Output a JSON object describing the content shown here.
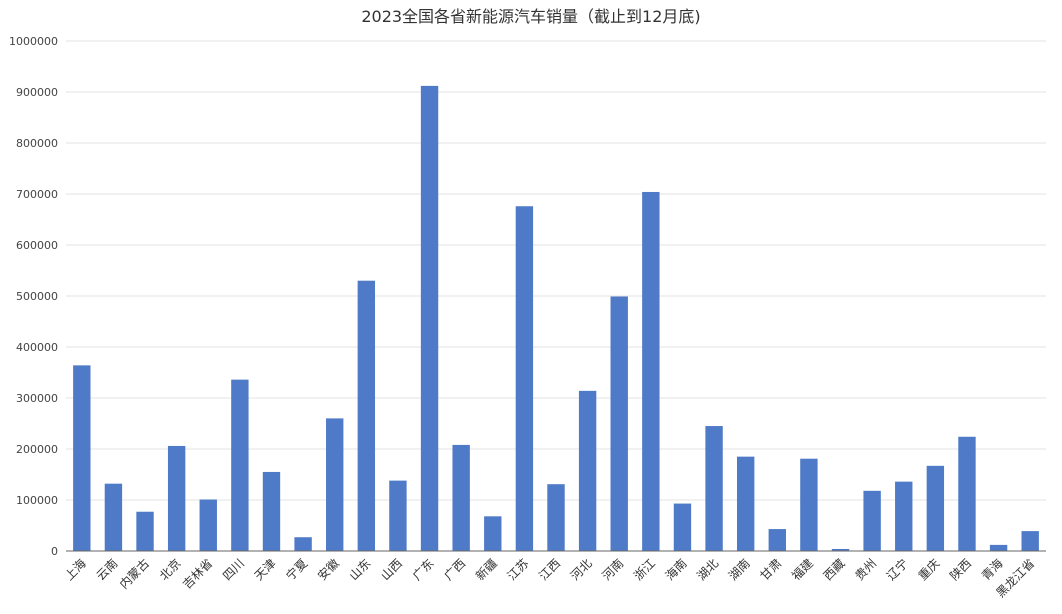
{
  "chart_data": {
    "type": "bar",
    "title": "2023全国各省新能源汽车销量（截止到12月底)",
    "xlabel": "",
    "ylabel": "",
    "ylim": [
      0,
      1000000
    ],
    "yticks": [
      "0",
      "100000",
      "200000",
      "300000",
      "400000",
      "500000",
      "600000",
      "700000",
      "800000",
      "900000",
      "1000000"
    ],
    "grid": true,
    "bar_color": "#4e7ac7",
    "categories": [
      "上海",
      "云南",
      "内蒙古",
      "北京",
      "吉林省",
      "四川",
      "天津",
      "宁夏",
      "安徽",
      "山东",
      "山西",
      "广东",
      "广西",
      "新疆",
      "江苏",
      "江西",
      "河北",
      "河南",
      "浙江",
      "海南",
      "湖北",
      "湖南",
      "甘肃",
      "福建",
      "西藏",
      "贵州",
      "辽宁",
      "重庆",
      "陕西",
      "青海",
      "黑龙江省"
    ],
    "values": [
      364000,
      132000,
      77000,
      206000,
      101000,
      336000,
      155000,
      27000,
      260000,
      530000,
      138000,
      912000,
      208000,
      68000,
      676000,
      131000,
      314000,
      499000,
      704000,
      93000,
      245000,
      185000,
      43000,
      181000,
      4000,
      118000,
      136000,
      167000,
      224000,
      12000,
      39000
    ]
  }
}
